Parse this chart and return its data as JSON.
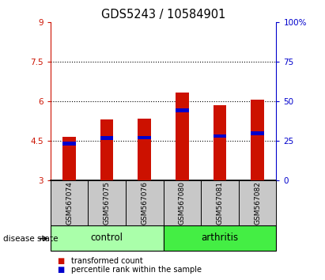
{
  "title": "GDS5243 / 10584901",
  "samples": [
    "GSM567074",
    "GSM567075",
    "GSM567076",
    "GSM567080",
    "GSM567081",
    "GSM567082"
  ],
  "bar_bottom": 3.0,
  "red_tops": [
    4.65,
    5.32,
    5.36,
    6.35,
    5.87,
    6.07
  ],
  "blue_bottoms": [
    4.32,
    4.55,
    4.57,
    5.6,
    4.62,
    4.72
  ],
  "blue_tops": [
    4.47,
    4.68,
    4.7,
    5.74,
    4.75,
    4.88
  ],
  "ylim_left": [
    3,
    9
  ],
  "ylim_right": [
    0,
    100
  ],
  "yticks_left": [
    3,
    4.5,
    6,
    7.5,
    9
  ],
  "yticks_right": [
    0,
    25,
    50,
    75,
    100
  ],
  "ytick_labels_left": [
    "3",
    "4.5",
    "6",
    "7.5",
    "9"
  ],
  "ytick_labels_right": [
    "0",
    "25",
    "50",
    "75",
    "100%"
  ],
  "hlines": [
    4.5,
    6.0,
    7.5
  ],
  "bar_width": 0.35,
  "red_color": "#CC1100",
  "blue_color": "#0000CC",
  "control_color": "#AAFFAA",
  "arthritis_color": "#44EE44",
  "label_bg_color": "#C8C8C8",
  "tick_label_fontsize": 7.5,
  "title_fontsize": 10.5,
  "group_label_fontsize": 8.5,
  "sample_label_fontsize": 6.5,
  "legend_red_label": "transformed count",
  "legend_blue_label": "percentile rank within the sample",
  "disease_state_label": "disease state",
  "control_label": "control",
  "arthritis_label": "arthritis"
}
